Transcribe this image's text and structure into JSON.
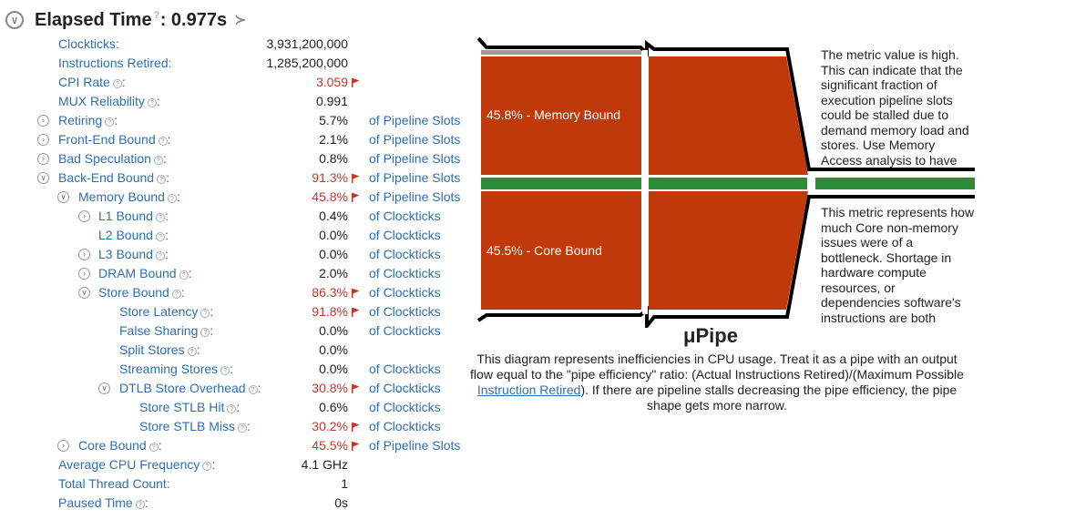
{
  "header": {
    "title": "Elapsed Time",
    "help": "?",
    "value": ": 0.977s",
    "collapse_glyph": "∨",
    "terminal_glyph": "≻"
  },
  "metrics": [
    {
      "label": "Clockticks:",
      "value": "3,931,200,000",
      "unit": "",
      "indent": 0,
      "toggle": "",
      "help": false,
      "hot": false
    },
    {
      "label": "Instructions Retired:",
      "value": "1,285,200,000",
      "unit": "",
      "indent": 0,
      "toggle": "",
      "help": false,
      "hot": false
    },
    {
      "label": "CPI Rate",
      "value": "3.059",
      "unit": "",
      "indent": 0,
      "toggle": "",
      "help": true,
      "hot": true,
      "suffix": ":"
    },
    {
      "label": "MUX Reliability",
      "value": "0.991",
      "unit": "",
      "indent": 0,
      "toggle": "",
      "help": true,
      "hot": false,
      "suffix": ":"
    },
    {
      "label": "Retiring",
      "value": "5.7%",
      "unit": "of Pipeline Slots",
      "indent": 0,
      "toggle": "›",
      "help": true,
      "hot": false,
      "suffix": ":"
    },
    {
      "label": "Front-End Bound",
      "value": "2.1%",
      "unit": "of Pipeline Slots",
      "indent": 0,
      "toggle": "›",
      "help": true,
      "hot": false,
      "suffix": ":"
    },
    {
      "label": "Bad Speculation",
      "value": "0.8%",
      "unit": "of Pipeline Slots",
      "indent": 0,
      "toggle": "›",
      "help": true,
      "hot": false,
      "suffix": ":"
    },
    {
      "label": "Back-End Bound",
      "value": "91.3%",
      "unit": "of Pipeline Slots",
      "indent": 0,
      "toggle": "∨",
      "help": true,
      "hot": true,
      "suffix": ":"
    },
    {
      "label": "Memory Bound",
      "value": "45.8%",
      "unit": "of Pipeline Slots",
      "indent": 1,
      "toggle": "∨",
      "help": true,
      "hot": true,
      "suffix": ":"
    },
    {
      "label": "L1 Bound",
      "value": "0.4%",
      "unit": "of Clockticks",
      "indent": 2,
      "toggle": "›",
      "help": true,
      "hot": false,
      "suffix": ":"
    },
    {
      "label": "L2 Bound",
      "value": "0.0%",
      "unit": "of Clockticks",
      "indent": 2,
      "toggle": "",
      "help": true,
      "hot": false,
      "suffix": ":"
    },
    {
      "label": "L3 Bound",
      "value": "0.0%",
      "unit": "of Clockticks",
      "indent": 2,
      "toggle": "›",
      "help": true,
      "hot": false,
      "suffix": ":"
    },
    {
      "label": "DRAM Bound",
      "value": "2.0%",
      "unit": "of Clockticks",
      "indent": 2,
      "toggle": "›",
      "help": true,
      "hot": false,
      "suffix": ":"
    },
    {
      "label": "Store Bound",
      "value": "86.3%",
      "unit": "of Clockticks",
      "indent": 2,
      "toggle": "∨",
      "help": true,
      "hot": true,
      "suffix": ":"
    },
    {
      "label": "Store Latency",
      "value": "91.8%",
      "unit": "of Clockticks",
      "indent": 3,
      "toggle": "",
      "help": true,
      "hot": true,
      "suffix": ":"
    },
    {
      "label": "False Sharing",
      "value": "0.0%",
      "unit": "of Clockticks",
      "indent": 3,
      "toggle": "",
      "help": true,
      "hot": false,
      "suffix": ":"
    },
    {
      "label": "Split Stores",
      "value": "0.0%",
      "unit": "",
      "indent": 3,
      "toggle": "",
      "help": true,
      "hot": false,
      "suffix": ":"
    },
    {
      "label": "Streaming Stores",
      "value": "0.0%",
      "unit": "of Clockticks",
      "indent": 3,
      "toggle": "",
      "help": true,
      "hot": false,
      "suffix": ":"
    },
    {
      "label": "DTLB Store Overhead",
      "value": "30.8%",
      "unit": "of Clockticks",
      "indent": 3,
      "toggle": "∨",
      "help": true,
      "hot": true,
      "suffix": ":"
    },
    {
      "label": "Store STLB Hit",
      "value": "0.6%",
      "unit": "of Clockticks",
      "indent": 4,
      "toggle": "",
      "help": true,
      "hot": false,
      "suffix": ":"
    },
    {
      "label": "Store STLB Miss",
      "value": "30.2%",
      "unit": "of Clockticks",
      "indent": 4,
      "toggle": "",
      "help": true,
      "hot": true,
      "suffix": ":"
    },
    {
      "label": "Core Bound",
      "value": "45.5%",
      "unit": "of Pipeline Slots",
      "indent": 1,
      "toggle": "›",
      "help": true,
      "hot": true,
      "suffix": ":"
    },
    {
      "label": "Average CPU Frequency",
      "value": "4.1 GHz",
      "unit": "",
      "indent": 0,
      "toggle": "",
      "help": true,
      "hot": false,
      "suffix": ":"
    },
    {
      "label": "Total Thread Count:",
      "value": "1",
      "unit": "",
      "indent": 0,
      "toggle": "",
      "help": false,
      "hot": false
    },
    {
      "label": "Paused Time",
      "value": "0s",
      "unit": "",
      "indent": 0,
      "toggle": "",
      "help": true,
      "hot": false,
      "suffix": ":"
    }
  ],
  "pipe": {
    "memory_label": "45.8% - Memory Bound",
    "core_label": "45.5% - Core Bound",
    "title": "μPipe",
    "desc_part1": "This diagram represents inefficiencies in CPU usage. Treat it as a pipe with an output flow equal to the \"pipe efficiency\" ratio: (Actual Instructions Retired)/(Maximum Possible ",
    "desc_link": "Instruction Retired",
    "desc_part2": "). If there are pipeline stalls decreasing the pipe efficiency, the pipe shape gets more narrow.",
    "note_memory": "The metric value is high. This can indicate that the significant fraction of execution pipeline slots could be stalled due to demand memory load and stores. Use Memory Access analysis to have the metric breakdown by memory hierarchy.",
    "note_core": "This metric represents how much Core non-memory issues were of a bottleneck. Shortage in hardware compute resources, or dependencies software's instructions are both categorized under Core Bound.",
    "colors": {
      "bound": "#c0390a",
      "retiring": "#2a8c36",
      "outline": "#000000",
      "other": "#9a9a9a"
    }
  }
}
